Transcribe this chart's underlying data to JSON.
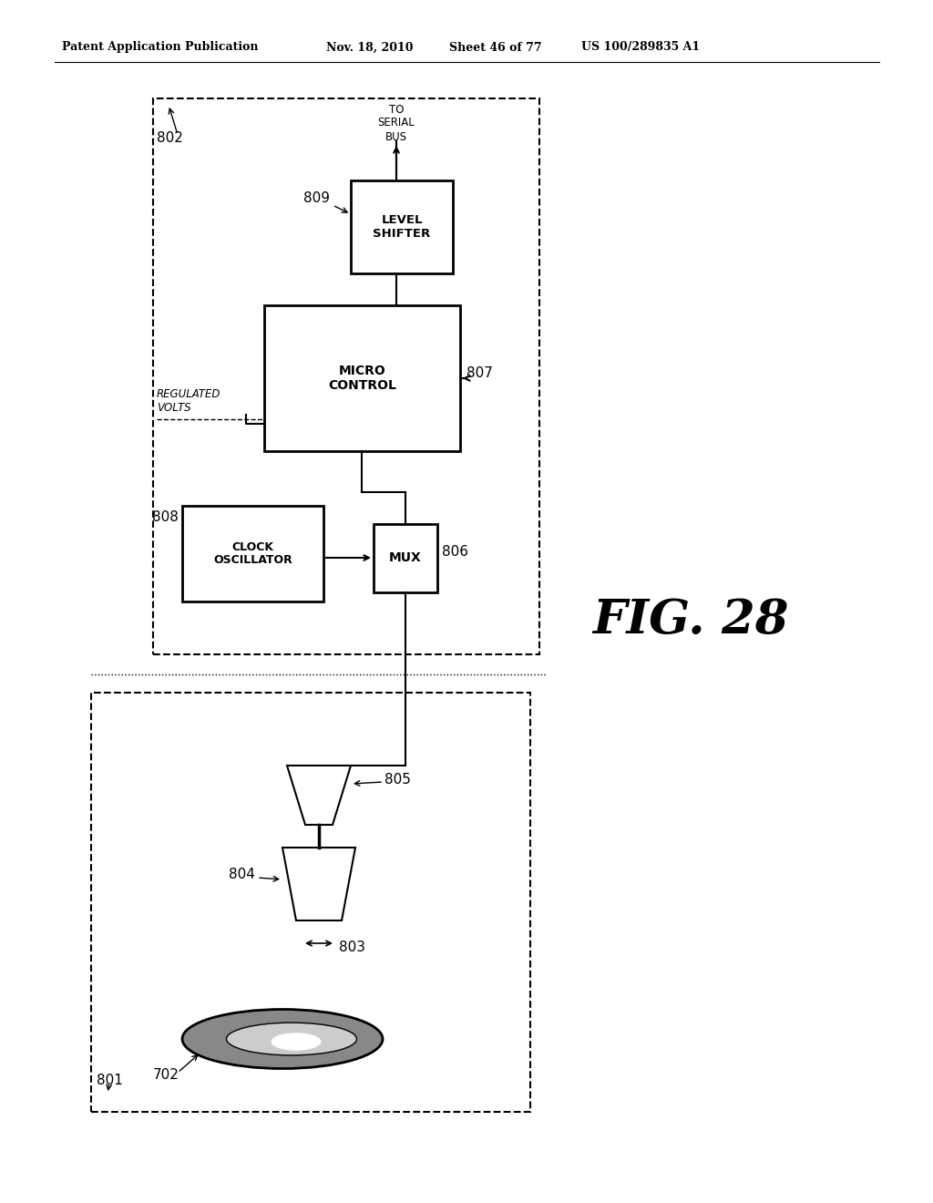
{
  "bg_color": "#ffffff",
  "header_text": "Patent Application Publication",
  "header_date": "Nov. 18, 2010",
  "header_sheet": "Sheet 46 of 77",
  "header_patent": "US 100/289835 A1",
  "fig_label": "FIG. 28",
  "box802_label": "802",
  "box801_label": "801",
  "label_702": "702",
  "label_803": "803",
  "label_804": "804",
  "label_805": "805",
  "label_806": "806",
  "label_807": "807",
  "label_808": "808",
  "label_809": "809",
  "text_regulated_volts": "REGULATED\nVOLTS",
  "text_micro_control": "MICRO\nCONTROL",
  "text_level_shifter": "LEVEL\nSHIFTER",
  "text_clock_oscillator": "CLOCK\nOSCILLATOR",
  "text_mux": "MUX",
  "text_to_serial_bus": "TO\nSERIAL\nBUS"
}
